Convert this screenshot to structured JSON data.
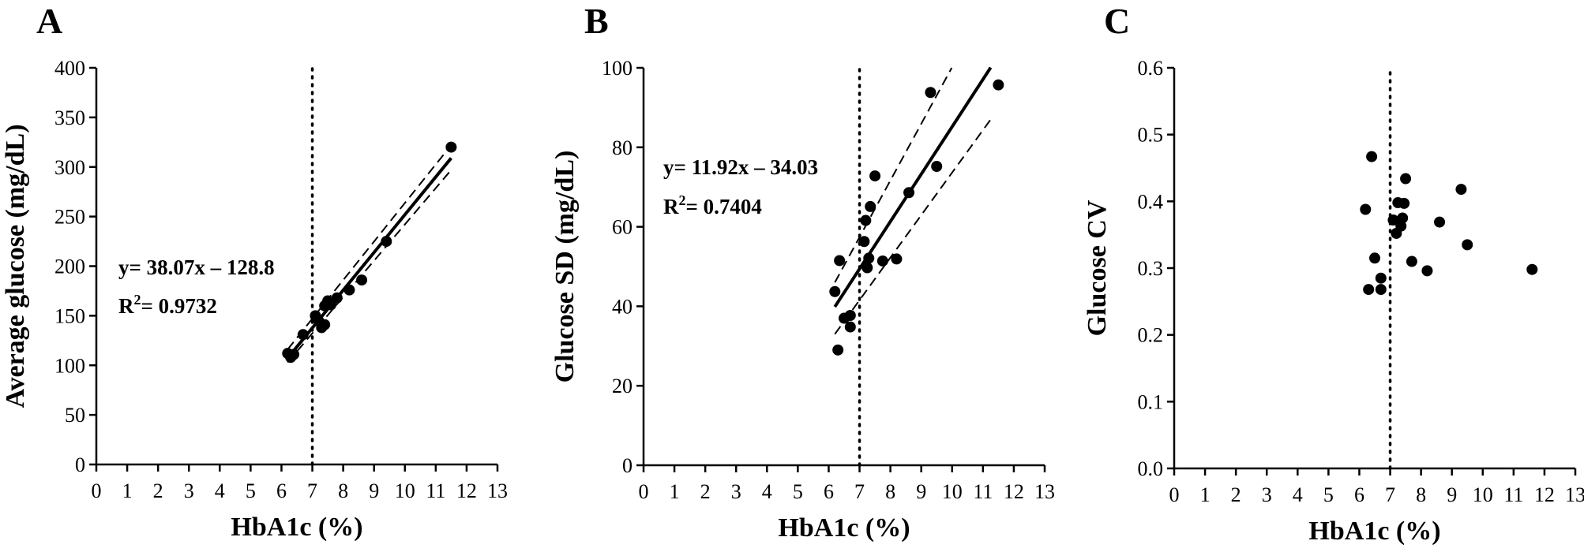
{
  "chart_data": [
    {
      "type": "scatter",
      "panel_label": "A",
      "xlabel": "HbA1c (%)",
      "ylabel": "Average glucose (mg/dL)",
      "xlim": [
        0,
        13
      ],
      "ylim": [
        0,
        400
      ],
      "x_ticks": [
        "0",
        "1",
        "2",
        "3",
        "4",
        "5",
        "6",
        "7",
        "8",
        "9",
        "10",
        "11",
        "12",
        "13"
      ],
      "y_ticks": [
        "0",
        "50",
        "100",
        "150",
        "200",
        "250",
        "300",
        "350",
        "400"
      ],
      "y_tick_values": [
        0,
        50,
        100,
        150,
        200,
        250,
        300,
        350,
        400
      ],
      "reference_x": 7,
      "points": [
        {
          "x": 6.2,
          "y": 112
        },
        {
          "x": 6.3,
          "y": 108
        },
        {
          "x": 6.4,
          "y": 111
        },
        {
          "x": 6.7,
          "y": 131
        },
        {
          "x": 7.1,
          "y": 150
        },
        {
          "x": 7.2,
          "y": 145
        },
        {
          "x": 7.3,
          "y": 138
        },
        {
          "x": 7.4,
          "y": 141
        },
        {
          "x": 7.4,
          "y": 160
        },
        {
          "x": 7.5,
          "y": 165
        },
        {
          "x": 7.6,
          "y": 161
        },
        {
          "x": 7.8,
          "y": 168
        },
        {
          "x": 8.2,
          "y": 176
        },
        {
          "x": 8.6,
          "y": 186
        },
        {
          "x": 9.4,
          "y": 225
        },
        {
          "x": 11.5,
          "y": 320
        }
      ],
      "fit": {
        "slope": 38.07,
        "intercept": -128.8,
        "x_range": [
          6.2,
          11.5
        ]
      },
      "ci_band": {
        "x_range": [
          6.2,
          11.5
        ],
        "lower_at_start": 103,
        "upper_at_start": 116,
        "lower_at_end": 297,
        "upper_at_end": 322
      },
      "annotations": [
        "y= 38.07x – 128.8",
        "R2= 0.9732"
      ]
    },
    {
      "type": "scatter",
      "panel_label": "B",
      "xlabel": "HbA1c (%)",
      "ylabel": "Glucose SD (mg/dL)",
      "xlim": [
        0,
        13
      ],
      "ylim": [
        0,
        100
      ],
      "x_ticks": [
        "0",
        "1",
        "2",
        "3",
        "4",
        "5",
        "6",
        "7",
        "8",
        "9",
        "10",
        "11",
        "12",
        "13"
      ],
      "y_ticks": [
        "0",
        "20",
        "40",
        "60",
        "80",
        "100"
      ],
      "y_tick_values": [
        0,
        20,
        40,
        60,
        80,
        100
      ],
      "reference_x": 7,
      "points": [
        {
          "x": 6.2,
          "y": 43.7
        },
        {
          "x": 6.3,
          "y": 29.0
        },
        {
          "x": 6.35,
          "y": 51.5
        },
        {
          "x": 6.5,
          "y": 37.0
        },
        {
          "x": 6.7,
          "y": 37.7
        },
        {
          "x": 6.7,
          "y": 34.8
        },
        {
          "x": 7.15,
          "y": 56.3
        },
        {
          "x": 7.2,
          "y": 61.6
        },
        {
          "x": 7.25,
          "y": 49.7
        },
        {
          "x": 7.3,
          "y": 52.1
        },
        {
          "x": 7.35,
          "y": 65.1
        },
        {
          "x": 7.5,
          "y": 72.8
        },
        {
          "x": 7.75,
          "y": 51.4
        },
        {
          "x": 8.2,
          "y": 51.9
        },
        {
          "x": 8.6,
          "y": 68.6
        },
        {
          "x": 9.3,
          "y": 93.8
        },
        {
          "x": 9.5,
          "y": 75.2
        },
        {
          "x": 11.5,
          "y": 95.7
        }
      ],
      "fit": {
        "slope": 11.92,
        "intercept": -34.03,
        "x_range": [
          6.2,
          11.25
        ]
      },
      "ci_band": {
        "x_range": [
          6.2,
          11.25
        ],
        "lower_at_start": 33,
        "upper_at_start": 46,
        "lower_at_end": 87,
        "upper_at_end": 118
      },
      "annotations": [
        "y= 11.92x – 34.03",
        "R2= 0.7404"
      ]
    },
    {
      "type": "scatter",
      "panel_label": "C",
      "xlabel": "HbA1c (%)",
      "ylabel": "Glucose CV",
      "xlim": [
        0,
        13
      ],
      "ylim": [
        0,
        0.6
      ],
      "x_ticks": [
        "0",
        "1",
        "2",
        "3",
        "4",
        "5",
        "6",
        "7",
        "8",
        "9",
        "10",
        "11",
        "12",
        "13"
      ],
      "y_ticks": [
        "0.0",
        "0.1",
        "0.2",
        "0.3",
        "0.4",
        "0.5",
        "0.6"
      ],
      "y_tick_values": [
        0,
        0.1,
        0.2,
        0.3,
        0.4,
        0.5,
        0.6
      ],
      "reference_x": 7,
      "points": [
        {
          "x": 6.2,
          "y": 0.388
        },
        {
          "x": 6.3,
          "y": 0.268
        },
        {
          "x": 6.4,
          "y": 0.467
        },
        {
          "x": 6.5,
          "y": 0.315
        },
        {
          "x": 6.7,
          "y": 0.285
        },
        {
          "x": 6.7,
          "y": 0.268
        },
        {
          "x": 7.1,
          "y": 0.372
        },
        {
          "x": 7.2,
          "y": 0.352
        },
        {
          "x": 7.25,
          "y": 0.398
        },
        {
          "x": 7.35,
          "y": 0.363
        },
        {
          "x": 7.4,
          "y": 0.375
        },
        {
          "x": 7.45,
          "y": 0.397
        },
        {
          "x": 7.5,
          "y": 0.434
        },
        {
          "x": 7.7,
          "y": 0.31
        },
        {
          "x": 8.2,
          "y": 0.296
        },
        {
          "x": 8.6,
          "y": 0.369
        },
        {
          "x": 9.3,
          "y": 0.418
        },
        {
          "x": 9.5,
          "y": 0.335
        },
        {
          "x": 11.6,
          "y": 0.298
        }
      ]
    }
  ]
}
